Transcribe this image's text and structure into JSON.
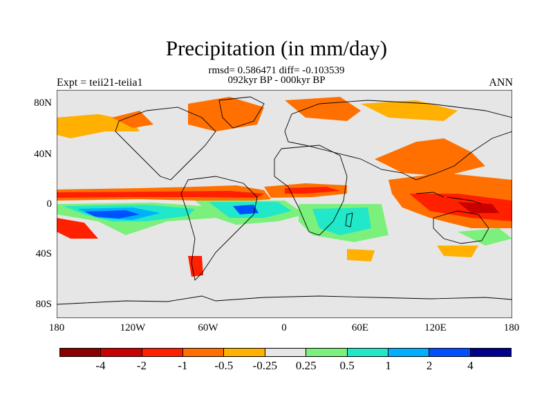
{
  "title": "Precipitation (in mm/day)",
  "stats_line1": "rmsd= 0.586471 diff= -0.103539",
  "stats_line2": "092kyr BP - 000kyr BP",
  "experiment": "Expt = teii21-teiia1",
  "season": "ANN",
  "y_ticks": [
    "80N",
    "40N",
    "0",
    "40S",
    "80S"
  ],
  "x_ticks": [
    "180",
    "120W",
    "60W",
    "0",
    "60E",
    "120E",
    "180"
  ],
  "colorbar": {
    "colors": [
      "#8b0000",
      "#c80000",
      "#ff2000",
      "#ff7000",
      "#ffb000",
      "#e6e6e6",
      "#7cf07c",
      "#20e8c8",
      "#00b0ff",
      "#0050ff",
      "#00008b"
    ],
    "labels": [
      "-4",
      "-2",
      "-1",
      "-0.5",
      "-0.25",
      "0.25",
      "0.5",
      "1",
      "2",
      "4"
    ]
  },
  "map": {
    "background": "#e6e6e6",
    "lon_range": [
      -180,
      180
    ],
    "lat_range": [
      -90,
      90
    ]
  }
}
